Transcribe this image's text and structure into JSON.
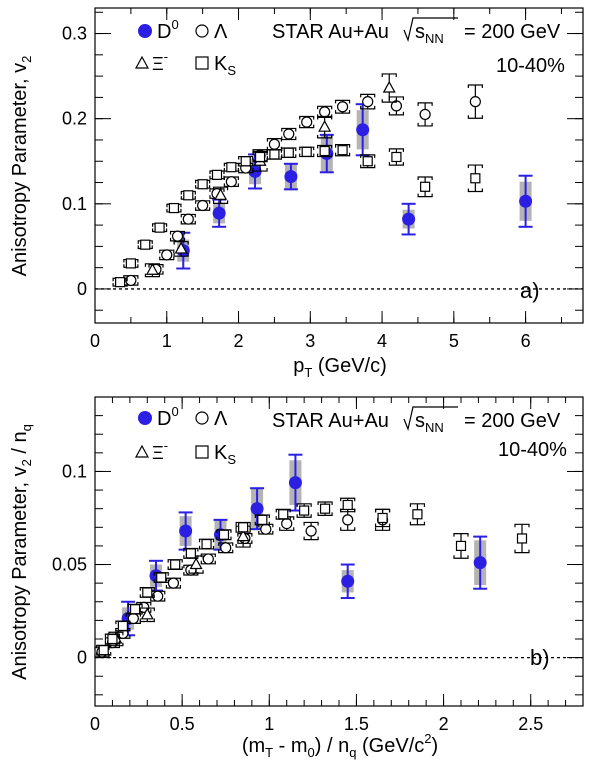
{
  "figure": {
    "experiment": "STAR Au+Au",
    "energy_var": "s",
    "energy_sub": "NN",
    "energy_value": "= 200 GeV",
    "centrality": "10-40%",
    "legend": {
      "d0": {
        "label": "D",
        "sup": "0"
      },
      "lambda": {
        "label": "Λ"
      },
      "xi": {
        "label": "Ξ",
        "sup": "-"
      },
      "ks": {
        "label": "K",
        "sub": "S"
      }
    }
  },
  "colors": {
    "d0": "#2b1fe3",
    "sys": "#b4b4b4",
    "axis": "#000000"
  },
  "chart_data": [
    {
      "type": "scatter",
      "panel_label": "a)",
      "xlabel": {
        "main": "p",
        "sub": "T",
        "rest": " (GeV/c)"
      },
      "ylabel": {
        "main": "Anisotropy Parameter, v",
        "sub": "2",
        "rest": ""
      },
      "xlim": [
        0,
        6.8
      ],
      "ylim": [
        -0.04,
        0.33
      ],
      "xticks": [
        {
          "v": 0,
          "label": "0"
        },
        {
          "v": 1,
          "label": "1"
        },
        {
          "v": 2,
          "label": "2"
        },
        {
          "v": 3,
          "label": "3"
        },
        {
          "v": 4,
          "label": "4"
        },
        {
          "v": 5,
          "label": "5"
        },
        {
          "v": 6,
          "label": "6"
        }
      ],
      "yticks": [
        {
          "v": 0,
          "label": "0"
        },
        {
          "v": 0.1,
          "label": "0.1"
        },
        {
          "v": 0.2,
          "label": "0.2"
        },
        {
          "v": 0.3,
          "label": "0.3"
        }
      ],
      "reference_line": 0,
      "series": [
        {
          "name": "D0",
          "marker": "filled-circle",
          "points": [
            {
              "x": 1.23,
              "y": 0.045,
              "err": 0.021,
              "sys": 0.013
            },
            {
              "x": 1.73,
              "y": 0.089,
              "err": 0.016,
              "sys": 0.012
            },
            {
              "x": 2.23,
              "y": 0.138,
              "err": 0.02,
              "sys": 0.015
            },
            {
              "x": 2.73,
              "y": 0.132,
              "err": 0.015,
              "sys": 0.016
            },
            {
              "x": 3.23,
              "y": 0.159,
              "err": 0.022,
              "sys": 0.022
            },
            {
              "x": 3.73,
              "y": 0.187,
              "err": 0.03,
              "sys": 0.023
            },
            {
              "x": 4.37,
              "y": 0.082,
              "err": 0.018,
              "sys": 0.011
            },
            {
              "x": 6.0,
              "y": 0.103,
              "err": 0.03,
              "sys": 0.023
            }
          ]
        },
        {
          "name": "Lambda",
          "marker": "open-circle",
          "points": [
            {
              "x": 0.5,
              "y": 0.01,
              "err": 0.002
            },
            {
              "x": 0.85,
              "y": 0.023,
              "err": 0.002
            },
            {
              "x": 1.0,
              "y": 0.04,
              "err": 0.002
            },
            {
              "x": 1.15,
              "y": 0.062,
              "err": 0.002
            },
            {
              "x": 1.3,
              "y": 0.082,
              "err": 0.002
            },
            {
              "x": 1.5,
              "y": 0.098,
              "err": 0.002
            },
            {
              "x": 1.7,
              "y": 0.112,
              "err": 0.002
            },
            {
              "x": 1.9,
              "y": 0.126,
              "err": 0.002
            },
            {
              "x": 2.1,
              "y": 0.142,
              "err": 0.002
            },
            {
              "x": 2.3,
              "y": 0.157,
              "err": 0.003
            },
            {
              "x": 2.5,
              "y": 0.17,
              "err": 0.003
            },
            {
              "x": 2.7,
              "y": 0.182,
              "err": 0.003
            },
            {
              "x": 2.95,
              "y": 0.196,
              "err": 0.003
            },
            {
              "x": 3.2,
              "y": 0.208,
              "err": 0.003
            },
            {
              "x": 3.45,
              "y": 0.214,
              "err": 0.004
            },
            {
              "x": 3.8,
              "y": 0.22,
              "err": 0.005
            },
            {
              "x": 4.2,
              "y": 0.215,
              "err": 0.007
            },
            {
              "x": 4.6,
              "y": 0.205,
              "err": 0.01
            },
            {
              "x": 5.3,
              "y": 0.22,
              "err": 0.016
            }
          ]
        },
        {
          "name": "Xi-",
          "marker": "open-triangle",
          "points": [
            {
              "x": 0.8,
              "y": 0.022,
              "err": 0.004
            },
            {
              "x": 1.2,
              "y": 0.047,
              "err": 0.005
            },
            {
              "x": 1.75,
              "y": 0.11,
              "err": 0.006
            },
            {
              "x": 2.3,
              "y": 0.15,
              "err": 0.008
            },
            {
              "x": 3.2,
              "y": 0.19,
              "err": 0.009
            },
            {
              "x": 4.1,
              "y": 0.236,
              "err": 0.013
            }
          ]
        },
        {
          "name": "KS",
          "marker": "open-square",
          "points": [
            {
              "x": 0.35,
              "y": 0.008,
              "err": 0.001
            },
            {
              "x": 0.5,
              "y": 0.03,
              "err": 0.001
            },
            {
              "x": 0.7,
              "y": 0.052,
              "err": 0.001
            },
            {
              "x": 0.9,
              "y": 0.072,
              "err": 0.001
            },
            {
              "x": 1.1,
              "y": 0.095,
              "err": 0.001
            },
            {
              "x": 1.3,
              "y": 0.11,
              "err": 0.001
            },
            {
              "x": 1.5,
              "y": 0.123,
              "err": 0.001
            },
            {
              "x": 1.7,
              "y": 0.134,
              "err": 0.001
            },
            {
              "x": 1.9,
              "y": 0.143,
              "err": 0.001
            },
            {
              "x": 2.1,
              "y": 0.15,
              "err": 0.002
            },
            {
              "x": 2.3,
              "y": 0.155,
              "err": 0.002
            },
            {
              "x": 2.5,
              "y": 0.158,
              "err": 0.002
            },
            {
              "x": 2.7,
              "y": 0.16,
              "err": 0.002
            },
            {
              "x": 2.95,
              "y": 0.161,
              "err": 0.002
            },
            {
              "x": 3.2,
              "y": 0.162,
              "err": 0.003
            },
            {
              "x": 3.45,
              "y": 0.163,
              "err": 0.003
            },
            {
              "x": 3.8,
              "y": 0.15,
              "err": 0.004
            },
            {
              "x": 4.2,
              "y": 0.155,
              "err": 0.006
            },
            {
              "x": 4.6,
              "y": 0.12,
              "err": 0.008
            },
            {
              "x": 5.3,
              "y": 0.13,
              "err": 0.012
            }
          ]
        }
      ]
    },
    {
      "type": "scatter",
      "panel_label": "b)",
      "xlabel": {
        "main": "(m",
        "sub": "T",
        "rest": " - m",
        "sub2": "0",
        "rest2": ") / n",
        "sub3": "q",
        "rest3": " (GeV/c",
        "sup": "2",
        "rest4": ")"
      },
      "ylabel": {
        "main": "Anisotropy Parameter, v",
        "sub": "2",
        "rest": " / n",
        "sub2": "q"
      },
      "xlim": [
        0,
        2.8
      ],
      "ylim": [
        -0.026,
        0.14
      ],
      "xticks": [
        {
          "v": 0,
          "label": "0"
        },
        {
          "v": 0.5,
          "label": "0.5"
        },
        {
          "v": 1,
          "label": "1"
        },
        {
          "v": 1.5,
          "label": "1.5"
        },
        {
          "v": 2,
          "label": "2"
        },
        {
          "v": 2.5,
          "label": "2.5"
        }
      ],
      "yticks": [
        {
          "v": 0,
          "label": "0"
        },
        {
          "v": 0.05,
          "label": "0.05"
        },
        {
          "v": 0.1,
          "label": "0.1"
        }
      ],
      "reference_line": 0,
      "series": [
        {
          "name": "D0",
          "marker": "filled-circle",
          "points": [
            {
              "x": 0.19,
              "y": 0.021,
              "err": 0.009,
              "sys": 0.006
            },
            {
              "x": 0.35,
              "y": 0.044,
              "err": 0.008,
              "sys": 0.006
            },
            {
              "x": 0.52,
              "y": 0.068,
              "err": 0.01,
              "sys": 0.008
            },
            {
              "x": 0.72,
              "y": 0.066,
              "err": 0.008,
              "sys": 0.008
            },
            {
              "x": 0.93,
              "y": 0.08,
              "err": 0.011,
              "sys": 0.011
            },
            {
              "x": 1.15,
              "y": 0.094,
              "err": 0.015,
              "sys": 0.012
            },
            {
              "x": 1.45,
              "y": 0.041,
              "err": 0.009,
              "sys": 0.006
            },
            {
              "x": 2.21,
              "y": 0.051,
              "err": 0.014,
              "sys": 0.012
            }
          ]
        },
        {
          "name": "Lambda",
          "marker": "open-circle",
          "points": [
            {
              "x": 0.04,
              "y": 0.003,
              "err": 0.001
            },
            {
              "x": 0.1,
              "y": 0.008,
              "err": 0.001
            },
            {
              "x": 0.16,
              "y": 0.013,
              "err": 0.001
            },
            {
              "x": 0.22,
              "y": 0.021,
              "err": 0.001
            },
            {
              "x": 0.28,
              "y": 0.027,
              "err": 0.001
            },
            {
              "x": 0.36,
              "y": 0.033,
              "err": 0.001
            },
            {
              "x": 0.45,
              "y": 0.04,
              "err": 0.001
            },
            {
              "x": 0.55,
              "y": 0.047,
              "err": 0.001
            },
            {
              "x": 0.65,
              "y": 0.053,
              "err": 0.001
            },
            {
              "x": 0.75,
              "y": 0.059,
              "err": 0.001
            },
            {
              "x": 0.86,
              "y": 0.064,
              "err": 0.001
            },
            {
              "x": 0.98,
              "y": 0.069,
              "err": 0.001
            },
            {
              "x": 1.1,
              "y": 0.072,
              "err": 0.002
            },
            {
              "x": 1.24,
              "y": 0.068,
              "err": 0.003
            },
            {
              "x": 1.45,
              "y": 0.074,
              "err": 0.004
            },
            {
              "x": 1.65,
              "y": 0.074,
              "err": 0.004
            }
          ]
        },
        {
          "name": "Xi-",
          "marker": "open-triangle",
          "points": [
            {
              "x": 0.12,
              "y": 0.01,
              "err": 0.002
            },
            {
              "x": 0.3,
              "y": 0.023,
              "err": 0.002
            },
            {
              "x": 0.58,
              "y": 0.05,
              "err": 0.003
            },
            {
              "x": 0.85,
              "y": 0.065,
              "err": 0.004
            }
          ]
        },
        {
          "name": "KS",
          "marker": "open-square",
          "points": [
            {
              "x": 0.05,
              "y": 0.004,
              "err": 0.001
            },
            {
              "x": 0.1,
              "y": 0.01,
              "err": 0.001
            },
            {
              "x": 0.16,
              "y": 0.017,
              "err": 0.001
            },
            {
              "x": 0.23,
              "y": 0.026,
              "err": 0.001
            },
            {
              "x": 0.3,
              "y": 0.035,
              "err": 0.001
            },
            {
              "x": 0.38,
              "y": 0.043,
              "err": 0.001
            },
            {
              "x": 0.46,
              "y": 0.05,
              "err": 0.001
            },
            {
              "x": 0.55,
              "y": 0.056,
              "err": 0.001
            },
            {
              "x": 0.64,
              "y": 0.061,
              "err": 0.001
            },
            {
              "x": 0.74,
              "y": 0.066,
              "err": 0.001
            },
            {
              "x": 0.85,
              "y": 0.07,
              "err": 0.001
            },
            {
              "x": 0.96,
              "y": 0.074,
              "err": 0.001
            },
            {
              "x": 1.08,
              "y": 0.077,
              "err": 0.001
            },
            {
              "x": 1.2,
              "y": 0.079,
              "err": 0.002
            },
            {
              "x": 1.32,
              "y": 0.08,
              "err": 0.002
            },
            {
              "x": 1.45,
              "y": 0.082,
              "err": 0.002
            },
            {
              "x": 1.65,
              "y": 0.075,
              "err": 0.003
            },
            {
              "x": 1.85,
              "y": 0.077,
              "err": 0.004
            },
            {
              "x": 2.1,
              "y": 0.06,
              "err": 0.005
            },
            {
              "x": 2.45,
              "y": 0.064,
              "err": 0.006
            }
          ]
        }
      ]
    }
  ]
}
